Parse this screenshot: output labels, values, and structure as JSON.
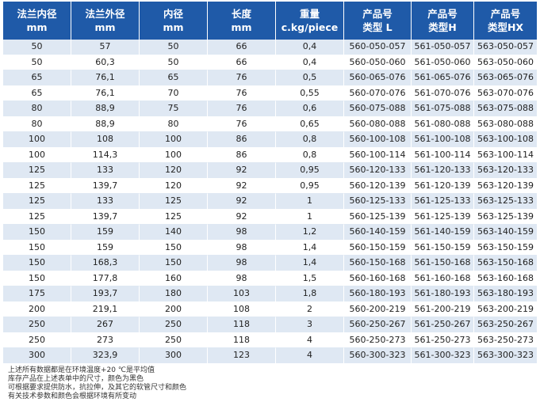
{
  "columns": [
    {
      "line1": "法兰内径",
      "line2": "mm"
    },
    {
      "line1": "法兰外径",
      "line2": "mm"
    },
    {
      "line1": "内径",
      "line2": "mm"
    },
    {
      "line1": "长度",
      "line2": "mm"
    },
    {
      "line1": "重量",
      "line2": "c.kg/piece"
    },
    {
      "line1": "产品号",
      "line2": "类型 L"
    },
    {
      "line1": "产品号",
      "line2": "类型H"
    },
    {
      "line1": "产品号",
      "line2": "类型HX"
    }
  ],
  "rows": [
    [
      "50",
      "57",
      "50",
      "66",
      "0,4",
      "560-050-057",
      "561-050-057",
      "563-050-057"
    ],
    [
      "50",
      "60,3",
      "50",
      "66",
      "0,4",
      "560-050-060",
      "561-050-060",
      "563-050-060"
    ],
    [
      "65",
      "76,1",
      "65",
      "76",
      "0,5",
      "560-065-076",
      "561-065-076",
      "563-065-076"
    ],
    [
      "65",
      "76,1",
      "70",
      "76",
      "0,55",
      "560-070-076",
      "561-070-076",
      "563-070-076"
    ],
    [
      "80",
      "88,9",
      "75",
      "76",
      "0,6",
      "560-075-088",
      "561-075-088",
      "563-075-088"
    ],
    [
      "80",
      "88,9",
      "80",
      "76",
      "0,65",
      "560-080-088",
      "561-080-088",
      "563-080-088"
    ],
    [
      "100",
      "108",
      "100",
      "86",
      "0,8",
      "560-100-108",
      "561-100-108",
      "563-100-108"
    ],
    [
      "100",
      "114,3",
      "100",
      "86",
      "0,8",
      "560-100-114",
      "561-100-114",
      "563-100-114"
    ],
    [
      "125",
      "133",
      "120",
      "92",
      "0,95",
      "560-120-133",
      "561-120-133",
      "563-120-133"
    ],
    [
      "125",
      "139,7",
      "120",
      "92",
      "0,95",
      "560-120-139",
      "561-120-139",
      "563-120-139"
    ],
    [
      "125",
      "133",
      "125",
      "92",
      "1",
      "560-125-133",
      "561-125-133",
      "563-125-133"
    ],
    [
      "125",
      "139,7",
      "125",
      "92",
      "1",
      "560-125-139",
      "561-125-139",
      "563-125-139"
    ],
    [
      "150",
      "159",
      "140",
      "98",
      "1,2",
      "560-140-159",
      "561-140-159",
      "563-140-159"
    ],
    [
      "150",
      "159",
      "150",
      "98",
      "1,4",
      "560-150-159",
      "561-150-159",
      "563-150-159"
    ],
    [
      "150",
      "168,3",
      "150",
      "98",
      "1,4",
      "560-150-168",
      "561-150-168",
      "563-150-168"
    ],
    [
      "150",
      "177,8",
      "160",
      "98",
      "1,5",
      "560-160-168",
      "561-160-168",
      "563-160-168"
    ],
    [
      "175",
      "193,7",
      "180",
      "103",
      "1,8",
      "560-180-193",
      "561-180-193",
      "563-180-193"
    ],
    [
      "200",
      "219,1",
      "200",
      "108",
      "2",
      "560-200-219",
      "561-200-219",
      "563-200-219"
    ],
    [
      "250",
      "267",
      "250",
      "118",
      "3",
      "560-250-267",
      "561-250-267",
      "563-250-267"
    ],
    [
      "250",
      "273",
      "250",
      "118",
      "4",
      "560-250-273",
      "561-250-273",
      "563-250-273"
    ],
    [
      "300",
      "323,9",
      "300",
      "123",
      "4",
      "560-300-323",
      "561-300-323",
      "563-300-323"
    ]
  ],
  "notes": [
    "上述所有数据都是在环境温度+20 ℃是平均值",
    "库存产品在上述表单中的尺寸，颜色为黑色",
    "可根据要求提供防水，抗拉伸，及其它的软管尺寸和颜色",
    "有关技术参数和颜色会根据环境有所变动"
  ],
  "colors": {
    "header_bg": "#1f5aa8",
    "header_text": "#ffffff",
    "stripe_bg": "#dfe8f3",
    "row_bg": "#ffffff"
  }
}
